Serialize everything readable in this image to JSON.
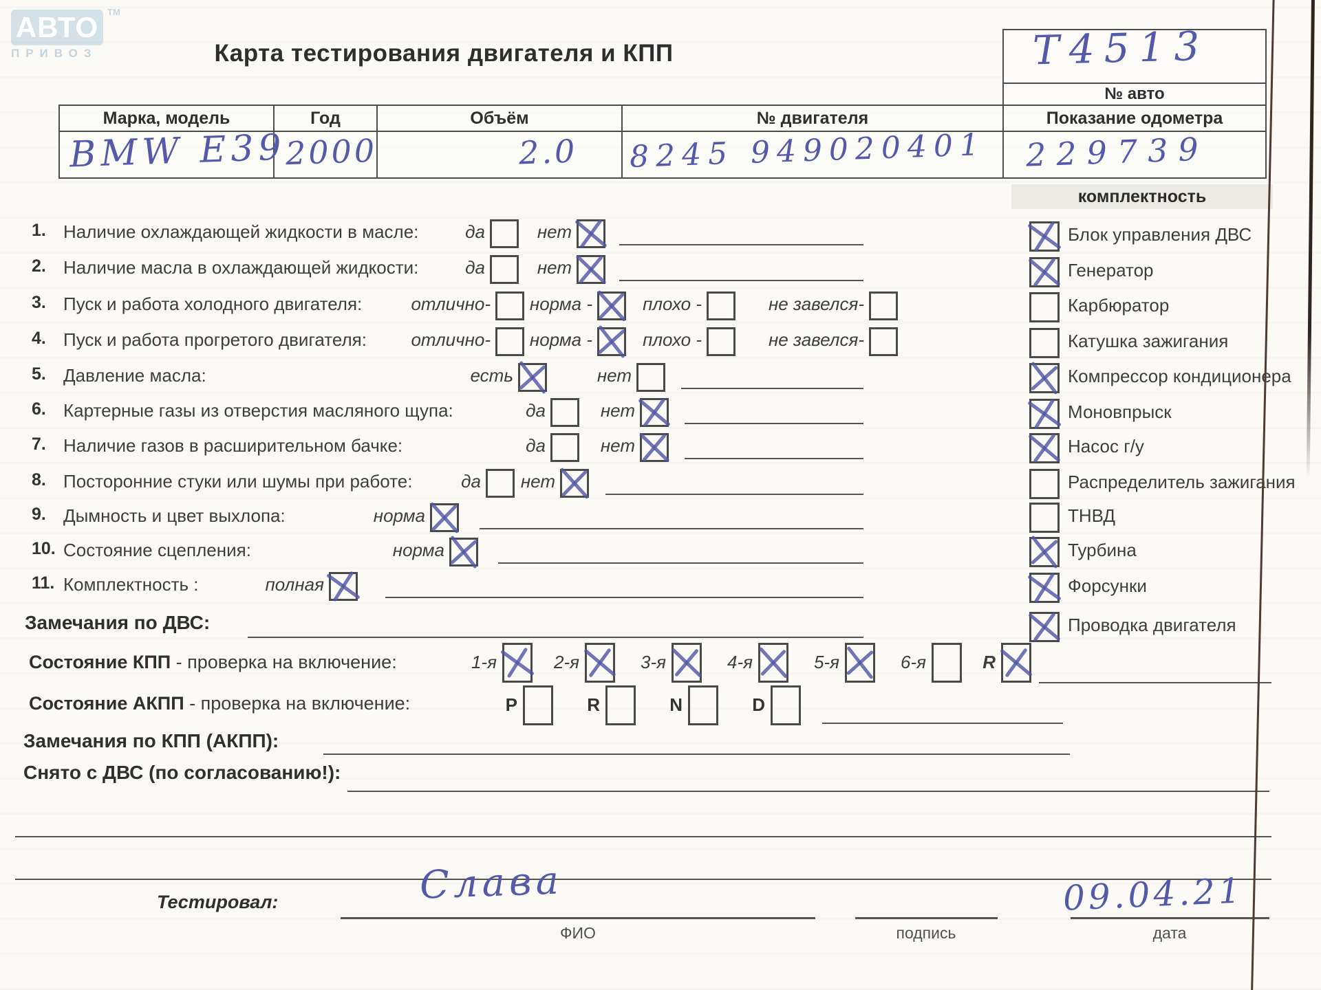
{
  "logo": {
    "brand_top": "АВТО",
    "tm": "ТМ",
    "brand_bottom": "ПРИВОЗ"
  },
  "title": "Карта тестирования двигателя и КПП",
  "auto_box": {
    "value": "T4513",
    "label": "№ авто"
  },
  "vehicle": {
    "columns": [
      "Марка, модель",
      "Год",
      "Объём",
      "№ двигателя",
      "Показание одометра"
    ],
    "values": [
      "BMW E39",
      "2000",
      "2.0",
      "8245 949020401",
      "229739"
    ]
  },
  "equipment": {
    "header": "комплектность",
    "items": [
      {
        "label": "Блок управления ДВС",
        "checked": true
      },
      {
        "label": "Генератор",
        "checked": true
      },
      {
        "label": "Карбюратор",
        "checked": false
      },
      {
        "label": "Катушка зажигания",
        "checked": false
      },
      {
        "label": "Компрессор кондиционера",
        "checked": true
      },
      {
        "label": "Моновпрыск",
        "checked": true
      },
      {
        "label": "Насос г/у",
        "checked": true
      },
      {
        "label": "Распределитель зажигания",
        "checked": false
      },
      {
        "label": "ТНВД",
        "checked": false
      },
      {
        "label": "Турбина",
        "checked": true
      },
      {
        "label": "Форсунки",
        "checked": true
      },
      {
        "label": "Проводка двигателя",
        "checked": true
      }
    ]
  },
  "checklist": [
    {
      "num": "1.",
      "label": "Наличие охлаждающей жидкости в масле:",
      "options": [
        {
          "label": "да",
          "checked": false
        },
        {
          "label": "нет",
          "checked": true
        }
      ]
    },
    {
      "num": "2.",
      "label": "Наличие масла в охлаждающей жидкости:",
      "options": [
        {
          "label": "да",
          "checked": false
        },
        {
          "label": "нет",
          "checked": true
        }
      ]
    },
    {
      "num": "3.",
      "label": "Пуск и работа холодного двигателя:",
      "options": [
        {
          "label": "отлично-",
          "checked": false
        },
        {
          "label": "норма -",
          "checked": true
        },
        {
          "label": "плохо -",
          "checked": false
        },
        {
          "label": "не завелся-",
          "checked": false
        }
      ]
    },
    {
      "num": "4.",
      "label": "Пуск и работа прогретого двигателя:",
      "options": [
        {
          "label": "отлично-",
          "checked": false
        },
        {
          "label": "норма -",
          "checked": true
        },
        {
          "label": "плохо -",
          "checked": false
        },
        {
          "label": "не завелся-",
          "checked": false
        }
      ]
    },
    {
      "num": "5.",
      "label": "Давление масла:",
      "options": [
        {
          "label": "есть",
          "checked": true
        },
        {
          "label": "нет",
          "checked": false
        }
      ]
    },
    {
      "num": "6.",
      "label": "Картерные газы из отверстия масляного щупа:",
      "options": [
        {
          "label": "да",
          "checked": false
        },
        {
          "label": "нет",
          "checked": true
        }
      ]
    },
    {
      "num": "7.",
      "label": "Наличие газов в расширительном бачке:",
      "options": [
        {
          "label": "да",
          "checked": false
        },
        {
          "label": "нет",
          "checked": true
        }
      ]
    },
    {
      "num": "8.",
      "label": "Посторонние стуки или шумы при работе:",
      "options": [
        {
          "label": "да",
          "checked": false
        },
        {
          "label": "нет",
          "checked": true
        }
      ]
    },
    {
      "num": "9.",
      "label": "Дымность и цвет выхлопа:",
      "options": [
        {
          "label": "норма",
          "checked": true
        }
      ]
    },
    {
      "num": "10.",
      "label": "Состояние сцепления:",
      "options": [
        {
          "label": "норма",
          "checked": true
        }
      ]
    },
    {
      "num": "11.",
      "label": "Комплектность :",
      "options": [
        {
          "label": "полная",
          "checked": true
        }
      ]
    }
  ],
  "dvs_remarks_label": "Замечания по ДВС:",
  "kpp": {
    "title_bold": "Состояние КПП",
    "title_rest": "- проверка на включение:",
    "gears": [
      {
        "label": "1-я",
        "checked": true
      },
      {
        "label": "2-я",
        "checked": true
      },
      {
        "label": "3-я",
        "checked": true
      },
      {
        "label": "4-я",
        "checked": true
      },
      {
        "label": "5-я",
        "checked": true
      },
      {
        "label": "6-я",
        "checked": false
      },
      {
        "label": "R",
        "checked": true
      }
    ]
  },
  "akpp": {
    "title_bold": "Состояние АКПП",
    "title_rest": "- проверка на включение:",
    "modes": [
      {
        "label": "P",
        "checked": false
      },
      {
        "label": "R",
        "checked": false
      },
      {
        "label": "N",
        "checked": false
      },
      {
        "label": "D",
        "checked": false
      }
    ]
  },
  "kpp_remarks_label": "Замечания по КПП (АКПП):",
  "removed_label": "Снято с ДВС (по согласованию!):",
  "footer": {
    "tested_label": "Тестировал:",
    "name_value": "Слава",
    "name_caption": "ФИО",
    "sign_caption": "подпись",
    "date_caption": "дата",
    "date_value": "09.04.21"
  },
  "colors": {
    "ink": "#5459a9",
    "paper": "#fbfaf7",
    "line": "#57534d",
    "scan_edge": "#4e3b33",
    "logo": "#d4e2e8"
  }
}
